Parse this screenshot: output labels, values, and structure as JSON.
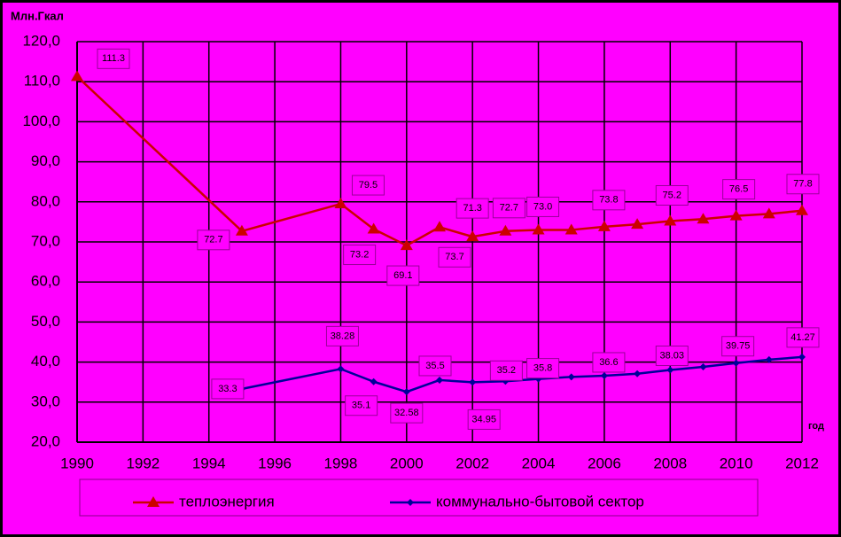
{
  "chart_data": {
    "type": "line",
    "y_axis_label": "Млн.Гкал",
    "x_axis_label": "год",
    "x": [
      1990,
      1995,
      1998,
      1999,
      2000,
      2001,
      2002,
      2003,
      2004,
      2005,
      2006,
      2007,
      2008,
      2009,
      2010,
      2011,
      2012
    ],
    "series": [
      {
        "name": "теплоэнергия",
        "color": "#cc0000",
        "marker": "triangle",
        "values": [
          111.3,
          72.7,
          79.5,
          73.2,
          69.1,
          73.7,
          71.3,
          72.7,
          73.0,
          73.0,
          73.8,
          74.4,
          75.2,
          75.7,
          76.5,
          77.0,
          77.8
        ],
        "value_labels": [
          "111.3",
          "72.7",
          "79.5",
          "73.2",
          "69.1",
          "73.7",
          "71.3",
          "72.7",
          "73.0",
          null,
          "73.8",
          null,
          "75.2",
          null,
          "76.5",
          null,
          "77.8"
        ]
      },
      {
        "name": "коммунально-бытовой сектор",
        "color": "#000099",
        "marker": "diamond",
        "values": [
          null,
          33.3,
          38.28,
          35.1,
          32.58,
          35.5,
          34.95,
          35.2,
          35.8,
          36.3,
          36.6,
          37.1,
          38.03,
          38.8,
          39.75,
          40.6,
          41.27
        ],
        "value_labels": [
          null,
          "33.3",
          "38.28",
          "35.1",
          "32.58",
          "35.5",
          "34.95",
          "35.2",
          "35.8",
          null,
          "36.6",
          null,
          "38.03",
          null,
          "39.75",
          null,
          "41.27"
        ]
      }
    ],
    "xlim": [
      1990,
      2012
    ],
    "xticks": [
      1990,
      1992,
      1994,
      1996,
      1998,
      2000,
      2002,
      2004,
      2006,
      2008,
      2010,
      2012
    ],
    "ylim": [
      20,
      120
    ],
    "yticks": [
      {
        "value": 20,
        "label": "20,0"
      },
      {
        "value": 30,
        "label": "30,0"
      },
      {
        "value": 40,
        "label": "40,0"
      },
      {
        "value": 50,
        "label": "50,0"
      },
      {
        "value": 60,
        "label": "60,0"
      },
      {
        "value": 70,
        "label": "70,0"
      },
      {
        "value": 80,
        "label": "80,0"
      },
      {
        "value": 90,
        "label": "90,0"
      },
      {
        "value": 100,
        "label": "100,0"
      },
      {
        "value": 110,
        "label": "110,0"
      },
      {
        "value": 120,
        "label": "120,0"
      }
    ],
    "grid": true,
    "legend": "bottom"
  }
}
